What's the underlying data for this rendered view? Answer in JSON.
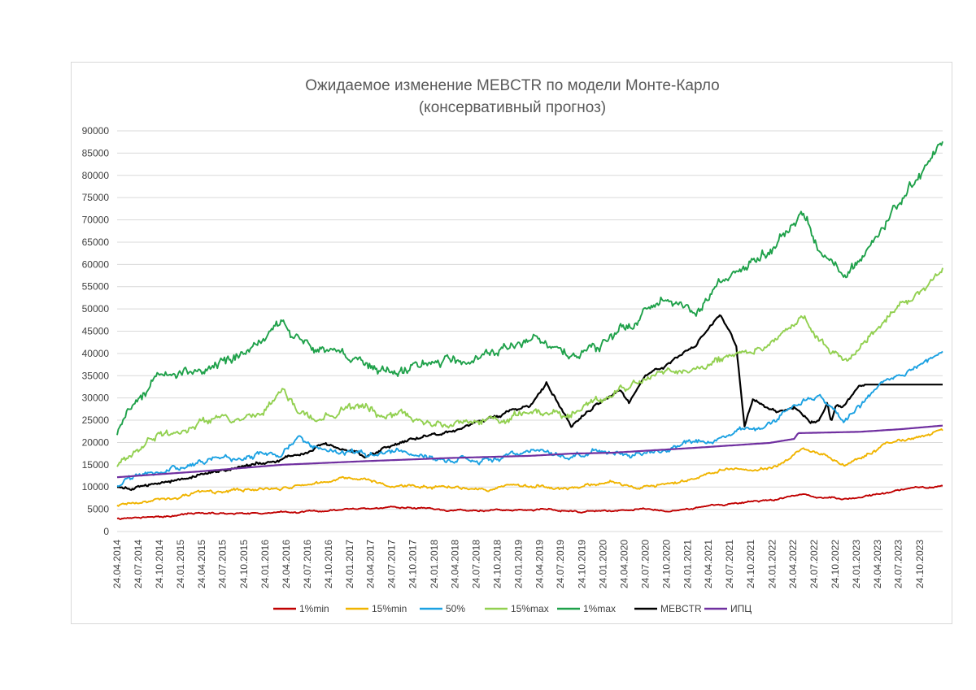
{
  "chart_data": {
    "type": "line",
    "title": "Ожидаемое изменение MEBCTR по модели Монте-Карло",
    "subtitle": "(консервативный прогноз)",
    "xlabel": "",
    "ylabel": "",
    "ylim": [
      0,
      90000
    ],
    "y_ticks": [
      "0",
      "5000",
      "10000",
      "15000",
      "20000",
      "25000",
      "30000",
      "35000",
      "40000",
      "45000",
      "50000",
      "55000",
      "60000",
      "65000",
      "70000",
      "75000",
      "80000",
      "85000",
      "90000"
    ],
    "x_start": "2014-04-24",
    "x_end": "2024-01-31",
    "x_ticks": [
      "24.04.2014",
      "24.07.2014",
      "24.10.2014",
      "24.01.2015",
      "24.04.2015",
      "24.07.2015",
      "24.10.2015",
      "24.01.2016",
      "24.04.2016",
      "24.07.2016",
      "24.10.2016",
      "24.01.2017",
      "24.04.2017",
      "24.07.2017",
      "24.10.2017",
      "24.01.2018",
      "24.04.2018",
      "24.07.2018",
      "24.10.2018",
      "24.01.2019",
      "24.04.2019",
      "24.07.2019",
      "24.10.2019",
      "24.01.2020",
      "24.04.2020",
      "24.07.2020",
      "24.10.2020",
      "24.01.2021",
      "24.04.2021",
      "24.07.2021",
      "24.10.2021",
      "24.01.2022",
      "24.04.2022",
      "24.07.2022",
      "24.10.2022",
      "24.01.2023",
      "24.04.2023",
      "24.07.2023",
      "24.10.2023"
    ],
    "legend_position": "bottom",
    "series": [
      {
        "name": "1%min",
        "color": "#c00000",
        "noise": 250,
        "x": [
          0,
          0.05,
          0.1,
          0.2,
          0.3,
          0.35,
          0.4,
          0.5,
          0.55,
          0.6,
          0.63,
          0.69,
          0.72,
          0.74,
          0.75,
          0.77,
          0.8,
          0.83,
          0.86,
          0.9,
          0.93,
          0.96,
          1.0
        ],
        "y": [
          2800,
          3500,
          4000,
          4300,
          5000,
          5600,
          4500,
          4700,
          4800,
          4500,
          4900,
          4800,
          5800,
          6200,
          6400,
          6700,
          7300,
          8500,
          7500,
          7500,
          8700,
          9500,
          10200
        ]
      },
      {
        "name": "15%min",
        "color": "#f0b400",
        "noise": 450,
        "x": [
          0,
          0.03,
          0.06,
          0.1,
          0.15,
          0.2,
          0.25,
          0.3,
          0.35,
          0.4,
          0.45,
          0.5,
          0.55,
          0.6,
          0.63,
          0.68,
          0.74,
          0.77,
          0.8,
          0.83,
          0.86,
          0.88,
          0.9,
          0.93,
          0.96,
          1.0
        ],
        "y": [
          5700,
          7000,
          8000,
          9000,
          9500,
          10000,
          11000,
          12000,
          10000,
          10500,
          10000,
          10500,
          10000,
          11500,
          10000,
          11200,
          14500,
          14000,
          15000,
          18200,
          16500,
          15000,
          16000,
          19000,
          20500,
          22500
        ]
      },
      {
        "name": "50%",
        "color": "#1ba1e2",
        "noise": 750,
        "x": [
          0,
          0.03,
          0.08,
          0.12,
          0.15,
          0.2,
          0.22,
          0.25,
          0.3,
          0.35,
          0.4,
          0.45,
          0.5,
          0.55,
          0.6,
          0.63,
          0.66,
          0.7,
          0.74,
          0.78,
          0.8,
          0.83,
          0.85,
          0.88,
          0.9,
          0.93,
          0.96,
          1.0
        ],
        "y": [
          10200,
          12000,
          15000,
          16000,
          16200,
          18000,
          21500,
          19000,
          17000,
          18500,
          16500,
          17000,
          18000,
          17000,
          18500,
          17500,
          17500,
          20000,
          22500,
          24000,
          26000,
          30000,
          30500,
          26000,
          28000,
          33000,
          36000,
          39500
        ]
      },
      {
        "name": "15%max",
        "color": "#92d050",
        "noise": 1100,
        "x": [
          0,
          0.02,
          0.05,
          0.1,
          0.15,
          0.18,
          0.2,
          0.22,
          0.25,
          0.28,
          0.32,
          0.35,
          0.4,
          0.45,
          0.5,
          0.55,
          0.6,
          0.63,
          0.66,
          0.7,
          0.75,
          0.8,
          0.83,
          0.85,
          0.88,
          0.9,
          0.93,
          0.96,
          1.0
        ],
        "y": [
          14500,
          17000,
          22000,
          24000,
          24500,
          29000,
          32000,
          28000,
          25000,
          27500,
          25000,
          26000,
          24000,
          25500,
          27500,
          26000,
          30000,
          34000,
          34500,
          37000,
          40000,
          44000,
          47500,
          42000,
          38500,
          42000,
          49000,
          52000,
          58000
        ]
      },
      {
        "name": "1%max",
        "color": "#1fa14a",
        "noise": 1500,
        "x": [
          0,
          0.02,
          0.05,
          0.1,
          0.15,
          0.2,
          0.25,
          0.28,
          0.3,
          0.35,
          0.4,
          0.45,
          0.5,
          0.55,
          0.6,
          0.63,
          0.66,
          0.7,
          0.72,
          0.75,
          0.78,
          0.8,
          0.83,
          0.85,
          0.88,
          0.9,
          0.93,
          0.95,
          0.98,
          1.0
        ],
        "y": [
          22000,
          28000,
          33000,
          36000,
          39000,
          47000,
          40000,
          36000,
          39000,
          38000,
          37000,
          40000,
          41000,
          39500,
          41000,
          46000,
          52000,
          51000,
          54000,
          58000,
          61000,
          64000,
          72000,
          64000,
          58000,
          62000,
          70000,
          75000,
          82000,
          86000
        ]
      },
      {
        "name": "MEBCTR",
        "color": "#000000",
        "noise": 450,
        "x": [
          0,
          0.03,
          0.05,
          0.08,
          0.1,
          0.15,
          0.2,
          0.25,
          0.3,
          0.33,
          0.36,
          0.4,
          0.45,
          0.5,
          0.52,
          0.55,
          0.58,
          0.6,
          0.61,
          0.62,
          0.64,
          0.66,
          0.68,
          0.7,
          0.73,
          0.75,
          0.76,
          0.77,
          0.8,
          0.82,
          0.84,
          0.85,
          0.86,
          0.865,
          0.87,
          0.88,
          0.9,
          0.91,
          0.93,
          0.94,
          0.96,
          0.97,
          0.98,
          0.99,
          1.0
        ],
        "y": [
          10000,
          10500,
          11000,
          12000,
          13500,
          15000,
          16000,
          19500,
          17000,
          19000,
          21000,
          22500,
          25000,
          28500,
          33500,
          24000,
          28000,
          30000,
          31500,
          29000,
          35000,
          37000,
          40000,
          42000,
          49000,
          42000,
          24000,
          30000,
          27000,
          28000,
          24000,
          25000,
          28500,
          24000,
          28000,
          28000,
          33000,
          33000,
          33000,
          33000,
          33000,
          33000,
          33000,
          33000,
          33000
        ]
      },
      {
        "name": "ИПЦ",
        "color": "#7030a0",
        "noise": 0,
        "x": [
          0,
          0.1,
          0.2,
          0.3,
          0.4,
          0.5,
          0.55,
          0.6,
          0.7,
          0.79,
          0.8,
          0.82,
          0.825,
          0.85,
          0.9,
          0.95,
          1.0
        ],
        "y": [
          12200,
          13500,
          15000,
          15800,
          16500,
          17000,
          17500,
          17700,
          18800,
          19900,
          20200,
          20800,
          22100,
          22200,
          22400,
          23000,
          23800
        ]
      }
    ]
  }
}
